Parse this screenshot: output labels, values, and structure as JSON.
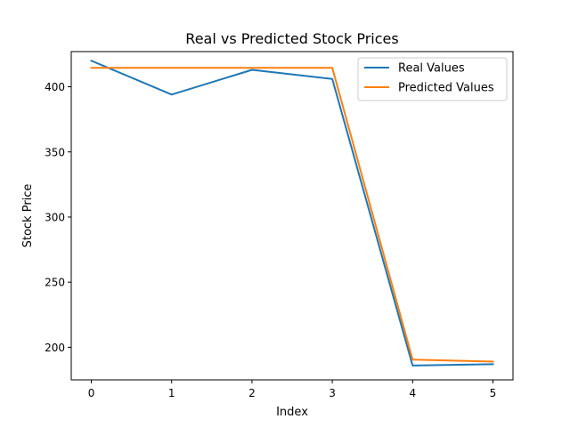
{
  "chart_data": {
    "type": "line",
    "title": "Real vs Predicted Stock Prices",
    "xlabel": "Index",
    "ylabel": "Stock Price",
    "x": [
      0,
      1,
      2,
      3,
      4,
      5
    ],
    "xlim": [
      -0.25,
      5.25
    ],
    "ylim": [
      175,
      427
    ],
    "xticks": [
      0,
      1,
      2,
      3,
      4,
      5
    ],
    "yticks": [
      200,
      250,
      300,
      350,
      400
    ],
    "grid": false,
    "legend_position": "top-right",
    "series": [
      {
        "name": "Real Values",
        "color": "#1f77b4",
        "values": [
          420,
          394,
          413,
          406,
          186,
          187
        ]
      },
      {
        "name": "Predicted Values",
        "color": "#ff7f0e",
        "values": [
          414.5,
          414.5,
          414.5,
          414.5,
          190.5,
          189
        ]
      }
    ]
  }
}
